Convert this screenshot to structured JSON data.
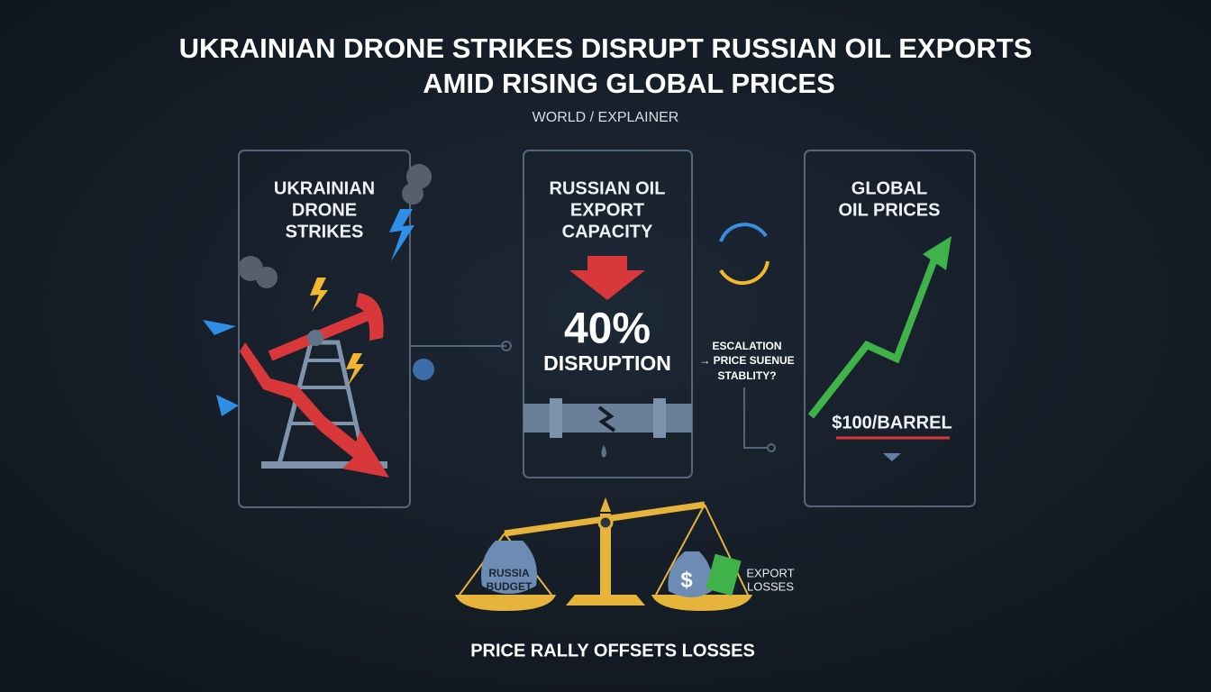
{
  "header": {
    "title_lines": [
      "UKRAINIAN DRONE STRIKES DISRUPT RUSSIAN OIL EXPORTS",
      "AMID RISING GLOBAL PRICES"
    ],
    "subtitle": "WORLD / EXPLAINER"
  },
  "panels": [
    {
      "heading_lines": [
        "UKRAINIAN",
        "DRONE",
        "STRIKES"
      ]
    },
    {
      "heading_lines": [
        "RUSSIAN OIL",
        "EXPORT",
        "CAPACITY"
      ],
      "figure": "40%",
      "caption": "DISRUPTION"
    },
    {
      "heading_lines": [
        "GLOBAL",
        "OIL PRICES"
      ],
      "price": "$100/BARREL"
    }
  ],
  "connector_note": [
    "ESCALATION",
    "→ PRICE SUENUE",
    "STABLITY?"
  ],
  "scale": {
    "left_bag": [
      "RUSSIA",
      "BUDGET"
    ],
    "right_bag": "$",
    "right_label": [
      "EXPORT",
      "LOSSES"
    ]
  },
  "footer": "PRICE RALLY OFFSETS LOSSES"
}
